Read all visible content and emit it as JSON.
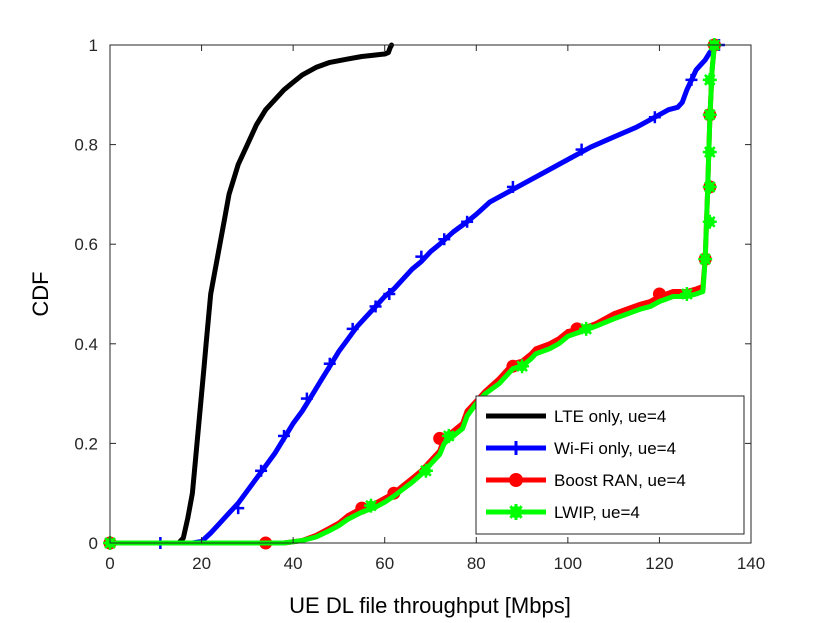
{
  "chart_data": {
    "type": "line",
    "title": "",
    "xlabel": "UE DL file throughput [Mbps]",
    "ylabel": "CDF",
    "xlim": [
      0,
      140
    ],
    "ylim": [
      0,
      1
    ],
    "xticks": [
      0,
      20,
      40,
      60,
      80,
      100,
      120,
      140
    ],
    "yticks": [
      0,
      0.2,
      0.4,
      0.6,
      0.8,
      1
    ],
    "xtick_labels": [
      "0",
      "20",
      "40",
      "60",
      "80",
      "100",
      "120",
      "140"
    ],
    "ytick_labels": [
      "0",
      "0.2",
      "0.4",
      "0.6",
      "0.8",
      "1"
    ],
    "grid": false,
    "legend_position": "bottom-right",
    "series": [
      {
        "name": "LTE only, ue=4",
        "color": "#000000",
        "marker": "none",
        "points": [
          [
            0,
            0
          ],
          [
            15,
            0
          ],
          [
            16,
            0.01
          ],
          [
            17,
            0.05
          ],
          [
            18,
            0.1
          ],
          [
            18.5,
            0.15
          ],
          [
            19,
            0.2
          ],
          [
            19.5,
            0.25
          ],
          [
            20,
            0.3
          ],
          [
            20.5,
            0.35
          ],
          [
            21,
            0.4
          ],
          [
            21.5,
            0.45
          ],
          [
            22,
            0.5
          ],
          [
            23,
            0.55
          ],
          [
            24,
            0.6
          ],
          [
            25,
            0.65
          ],
          [
            26,
            0.7
          ],
          [
            27,
            0.73
          ],
          [
            28,
            0.76
          ],
          [
            30,
            0.8
          ],
          [
            32,
            0.84
          ],
          [
            34,
            0.87
          ],
          [
            36,
            0.89
          ],
          [
            38,
            0.91
          ],
          [
            40,
            0.925
          ],
          [
            42,
            0.94
          ],
          [
            45,
            0.955
          ],
          [
            48,
            0.965
          ],
          [
            52,
            0.972
          ],
          [
            55,
            0.977
          ],
          [
            58,
            0.98
          ],
          [
            60,
            0.982
          ],
          [
            60.8,
            0.985
          ],
          [
            61.2,
            0.995
          ],
          [
            61.5,
            1.0
          ]
        ],
        "marker_points": []
      },
      {
        "name": "Wi-Fi only, ue=4",
        "color": "#0000ff",
        "marker": "plus",
        "points": [
          [
            0,
            0
          ],
          [
            10,
            0
          ],
          [
            18,
            0
          ],
          [
            20,
            0.003
          ],
          [
            22,
            0.02
          ],
          [
            24,
            0.04
          ],
          [
            26,
            0.06
          ],
          [
            28,
            0.08
          ],
          [
            30,
            0.105
          ],
          [
            32,
            0.13
          ],
          [
            34,
            0.155
          ],
          [
            36,
            0.18
          ],
          [
            38,
            0.21
          ],
          [
            40,
            0.24
          ],
          [
            42,
            0.265
          ],
          [
            44,
            0.295
          ],
          [
            46,
            0.325
          ],
          [
            48,
            0.355
          ],
          [
            50,
            0.385
          ],
          [
            52,
            0.41
          ],
          [
            54,
            0.435
          ],
          [
            56,
            0.455
          ],
          [
            58,
            0.475
          ],
          [
            60,
            0.495
          ],
          [
            62,
            0.51
          ],
          [
            64,
            0.53
          ],
          [
            66,
            0.55
          ],
          [
            68,
            0.565
          ],
          [
            70,
            0.585
          ],
          [
            72,
            0.6
          ],
          [
            75,
            0.625
          ],
          [
            78,
            0.645
          ],
          [
            80,
            0.66
          ],
          [
            83,
            0.685
          ],
          [
            86,
            0.7
          ],
          [
            90,
            0.72
          ],
          [
            95,
            0.745
          ],
          [
            100,
            0.77
          ],
          [
            105,
            0.795
          ],
          [
            110,
            0.815
          ],
          [
            115,
            0.835
          ],
          [
            118,
            0.85
          ],
          [
            122,
            0.87
          ],
          [
            124,
            0.875
          ],
          [
            125,
            0.885
          ],
          [
            126,
            0.91
          ],
          [
            127,
            0.93
          ],
          [
            128,
            0.95
          ],
          [
            129,
            0.96
          ],
          [
            130,
            0.97
          ],
          [
            131,
            0.985
          ],
          [
            132,
            0.995
          ],
          [
            133,
            1.0
          ]
        ],
        "marker_points": [
          [
            0,
            0
          ],
          [
            11,
            0
          ],
          [
            28,
            0.07
          ],
          [
            33,
            0.145
          ],
          [
            38,
            0.215
          ],
          [
            43,
            0.29
          ],
          [
            48,
            0.36
          ],
          [
            53,
            0.43
          ],
          [
            58,
            0.475
          ],
          [
            61,
            0.5
          ],
          [
            68,
            0.575
          ],
          [
            73,
            0.61
          ],
          [
            78,
            0.645
          ],
          [
            88,
            0.715
          ],
          [
            103,
            0.79
          ],
          [
            119,
            0.855
          ],
          [
            127,
            0.93
          ],
          [
            133,
            1.0
          ]
        ]
      },
      {
        "name": "Boost RAN, ue=4",
        "color": "#ff0000",
        "marker": "circle",
        "points": [
          [
            0,
            0
          ],
          [
            10,
            0
          ],
          [
            33,
            0
          ],
          [
            38,
            0
          ],
          [
            42,
            0.005
          ],
          [
            45,
            0.015
          ],
          [
            48,
            0.03
          ],
          [
            50,
            0.04
          ],
          [
            52,
            0.055
          ],
          [
            55,
            0.07
          ],
          [
            58,
            0.08
          ],
          [
            60,
            0.09
          ],
          [
            62,
            0.1
          ],
          [
            64,
            0.115
          ],
          [
            66,
            0.13
          ],
          [
            68,
            0.145
          ],
          [
            70,
            0.165
          ],
          [
            72,
            0.185
          ],
          [
            73,
            0.21
          ],
          [
            75,
            0.225
          ],
          [
            77,
            0.24
          ],
          [
            78,
            0.265
          ],
          [
            80,
            0.285
          ],
          [
            82,
            0.305
          ],
          [
            85,
            0.33
          ],
          [
            87,
            0.35
          ],
          [
            88,
            0.36
          ],
          [
            90,
            0.365
          ],
          [
            92,
            0.38
          ],
          [
            93,
            0.39
          ],
          [
            96,
            0.4
          ],
          [
            98,
            0.41
          ],
          [
            100,
            0.425
          ],
          [
            103,
            0.43
          ],
          [
            106,
            0.44
          ],
          [
            110,
            0.46
          ],
          [
            113,
            0.47
          ],
          [
            116,
            0.48
          ],
          [
            118,
            0.485
          ],
          [
            120,
            0.495
          ],
          [
            123,
            0.505
          ],
          [
            126,
            0.505
          ],
          [
            128,
            0.51
          ],
          [
            129.5,
            0.515
          ],
          [
            130,
            0.57
          ],
          [
            130.5,
            0.7
          ],
          [
            131,
            0.85
          ],
          [
            131.5,
            0.95
          ],
          [
            132,
            1.0
          ]
        ],
        "marker_points": [
          [
            0,
            0
          ],
          [
            34,
            0
          ],
          [
            55,
            0.07
          ],
          [
            62,
            0.1
          ],
          [
            72,
            0.21
          ],
          [
            88,
            0.355
          ],
          [
            102,
            0.43
          ],
          [
            120,
            0.5
          ],
          [
            130,
            0.57
          ],
          [
            131,
            0.715
          ],
          [
            131,
            0.86
          ],
          [
            132,
            1.0
          ]
        ]
      },
      {
        "name": "LWIP, ue=4",
        "color": "#00ff00",
        "marker": "asterisk",
        "points": [
          [
            0,
            0
          ],
          [
            10,
            0
          ],
          [
            33,
            0
          ],
          [
            38,
            0
          ],
          [
            42,
            0.005
          ],
          [
            45,
            0.012
          ],
          [
            48,
            0.025
          ],
          [
            50,
            0.035
          ],
          [
            52,
            0.048
          ],
          [
            55,
            0.062
          ],
          [
            58,
            0.072
          ],
          [
            60,
            0.082
          ],
          [
            62,
            0.094
          ],
          [
            64,
            0.108
          ],
          [
            66,
            0.122
          ],
          [
            68,
            0.138
          ],
          [
            70,
            0.158
          ],
          [
            72,
            0.178
          ],
          [
            73,
            0.2
          ],
          [
            75,
            0.215
          ],
          [
            77,
            0.23
          ],
          [
            78,
            0.255
          ],
          [
            80,
            0.28
          ],
          [
            82,
            0.3
          ],
          [
            85,
            0.32
          ],
          [
            87,
            0.34
          ],
          [
            88,
            0.35
          ],
          [
            90,
            0.355
          ],
          [
            92,
            0.37
          ],
          [
            93,
            0.38
          ],
          [
            96,
            0.39
          ],
          [
            98,
            0.4
          ],
          [
            100,
            0.415
          ],
          [
            103,
            0.425
          ],
          [
            106,
            0.435
          ],
          [
            110,
            0.45
          ],
          [
            113,
            0.46
          ],
          [
            116,
            0.47
          ],
          [
            118,
            0.475
          ],
          [
            120,
            0.485
          ],
          [
            123,
            0.495
          ],
          [
            126,
            0.495
          ],
          [
            128,
            0.5
          ],
          [
            129.5,
            0.505
          ],
          [
            130,
            0.57
          ],
          [
            130.5,
            0.7
          ],
          [
            131,
            0.85
          ],
          [
            131.5,
            0.95
          ],
          [
            132,
            1.0
          ]
        ],
        "marker_points": [
          [
            0,
            0
          ],
          [
            57,
            0.075
          ],
          [
            69,
            0.145
          ],
          [
            74,
            0.215
          ],
          [
            90,
            0.355
          ],
          [
            104,
            0.43
          ],
          [
            126,
            0.5
          ],
          [
            130,
            0.57
          ],
          [
            131,
            0.645
          ],
          [
            131,
            0.715
          ],
          [
            131,
            0.785
          ],
          [
            131,
            0.86
          ],
          [
            131,
            0.93
          ],
          [
            132,
            1.0
          ]
        ]
      }
    ]
  }
}
